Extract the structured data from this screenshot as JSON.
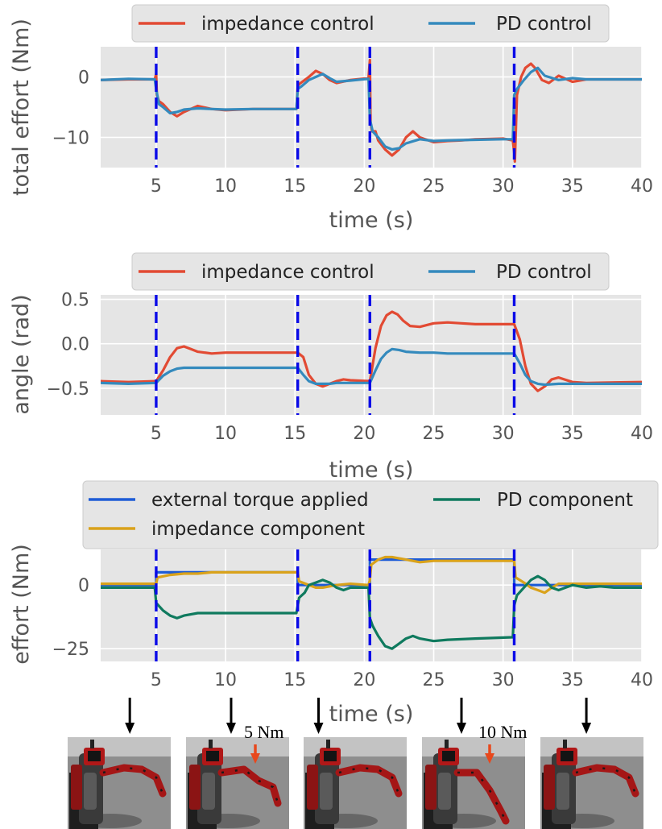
{
  "chart_data": [
    {
      "type": "line",
      "xlabel": "time (s)",
      "ylabel": "total effort (Nm)",
      "xlim": [
        1,
        40
      ],
      "ylim": [
        -15,
        5
      ],
      "xticks": [
        "5",
        "10",
        "15",
        "20",
        "25",
        "30",
        "35",
        "40"
      ],
      "yticks": [
        "0",
        "−10"
      ],
      "ytick_values": [
        0,
        -10
      ],
      "vlines": [
        5,
        15.2,
        20.4,
        30.8
      ],
      "legend": [
        "impedance control",
        "PD control"
      ],
      "series": [
        {
          "name": "impedance control",
          "color": "#e24a33",
          "x": [
            1,
            3,
            4.9,
            5.0,
            5.05,
            5.2,
            5.5,
            6,
            6.5,
            7,
            8,
            9,
            10,
            12,
            14,
            15.1,
            15.2,
            15.3,
            16,
            16.5,
            17,
            17.5,
            18,
            19,
            20.3,
            20.4,
            20.45,
            20.55,
            20.8,
            21,
            21.5,
            22,
            22.5,
            23,
            23.5,
            24,
            25,
            26,
            27,
            28,
            30,
            30.7,
            30.8,
            30.85,
            31,
            31.3,
            31.6,
            32,
            32.3,
            32.8,
            33.3,
            34,
            35,
            36,
            38,
            40
          ],
          "y": [
            -0.5,
            -0.4,
            -0.4,
            0.5,
            -3,
            -4,
            -4.5,
            -5.8,
            -6.5,
            -5.8,
            -4.8,
            -5.3,
            -5.5,
            -5.3,
            -5.3,
            -5.3,
            -1.5,
            -1.2,
            0,
            1,
            0.5,
            -0.5,
            -1,
            -0.5,
            -0.2,
            2.8,
            -7.5,
            -9,
            -9,
            -10.5,
            -12,
            -13,
            -12,
            -10,
            -9,
            -10,
            -10.8,
            -10.6,
            -10.5,
            -10.3,
            -10.2,
            -10.5,
            -12.5,
            -14,
            -3,
            0,
            1.5,
            2.2,
            1.5,
            -0.5,
            -1,
            0.2,
            -0.8,
            -0.4,
            -0.4,
            -0.4
          ]
        },
        {
          "name": "PD control",
          "color": "#348abd",
          "x": [
            1,
            3,
            4.9,
            5.0,
            5.2,
            5.5,
            6,
            6.5,
            7,
            8,
            9,
            10,
            12,
            14,
            15.1,
            15.2,
            15.5,
            16,
            16.5,
            17,
            17.5,
            18,
            19,
            20.3,
            20.4,
            20.6,
            21,
            21.5,
            22,
            22.5,
            23,
            24,
            25,
            26,
            28,
            30,
            30.7,
            30.8,
            31,
            31.5,
            32,
            32.5,
            33,
            34,
            35,
            36,
            38,
            40
          ],
          "y": [
            -0.5,
            -0.3,
            -0.4,
            -2,
            -4.5,
            -5,
            -6,
            -5.8,
            -5.4,
            -5.2,
            -5.3,
            -5.4,
            -5.3,
            -5.3,
            -5.3,
            -2,
            -1.5,
            -0.5,
            0,
            0.5,
            -0.2,
            -0.8,
            -0.6,
            -0.3,
            -7,
            -9,
            -10,
            -11.5,
            -12,
            -11.8,
            -11,
            -10.3,
            -10.6,
            -10.5,
            -10.4,
            -10.3,
            -10.3,
            -3,
            -2,
            -0.5,
            0.8,
            1.5,
            0.2,
            -0.5,
            -0.2,
            -0.4,
            -0.4,
            -0.4
          ]
        }
      ]
    },
    {
      "type": "line",
      "xlabel": "time (s)",
      "ylabel": "angle (rad)",
      "xlim": [
        1,
        40
      ],
      "ylim": [
        -0.8,
        0.55
      ],
      "xticks": [
        "5",
        "10",
        "15",
        "20",
        "25",
        "30",
        "35",
        "40"
      ],
      "yticks": [
        "0.5",
        "0.0",
        "−0.5"
      ],
      "ytick_values": [
        0.5,
        0,
        -0.5
      ],
      "vlines": [
        5,
        15.2,
        20.4,
        30.8
      ],
      "legend": [
        "impedance control",
        "PD control"
      ],
      "series": [
        {
          "name": "impedance control",
          "color": "#e24a33",
          "x": [
            1,
            3,
            5,
            5.5,
            6,
            6.5,
            7,
            7.5,
            8,
            9,
            10,
            12,
            14,
            15.2,
            15.6,
            16,
            16.5,
            17,
            17.5,
            18,
            18.5,
            19,
            20.4,
            20.8,
            21.2,
            21.6,
            22,
            22.4,
            22.8,
            23.3,
            24,
            25,
            26,
            27,
            28,
            30.8,
            31.2,
            31.6,
            32,
            32.5,
            33,
            33.5,
            34,
            35,
            36,
            40
          ],
          "y": [
            -0.42,
            -0.43,
            -0.42,
            -0.3,
            -0.15,
            -0.05,
            -0.03,
            -0.06,
            -0.09,
            -0.11,
            -0.1,
            -0.1,
            -0.1,
            -0.1,
            -0.15,
            -0.35,
            -0.45,
            -0.48,
            -0.45,
            -0.42,
            -0.4,
            -0.41,
            -0.42,
            -0.05,
            0.2,
            0.32,
            0.36,
            0.33,
            0.26,
            0.2,
            0.19,
            0.23,
            0.24,
            0.23,
            0.22,
            0.22,
            0.05,
            -0.25,
            -0.45,
            -0.53,
            -0.48,
            -0.4,
            -0.38,
            -0.43,
            -0.44,
            -0.43
          ]
        },
        {
          "name": "PD control",
          "color": "#348abd",
          "x": [
            1,
            3,
            5,
            5.5,
            6,
            6.5,
            7,
            8,
            9,
            10,
            12,
            14,
            15.2,
            15.6,
            16,
            16.5,
            17,
            17.5,
            18,
            19,
            20.4,
            20.8,
            21.2,
            21.6,
            22,
            22.5,
            23,
            24,
            25,
            26,
            28,
            30.8,
            31.2,
            31.6,
            32,
            32.5,
            33,
            34,
            35,
            36,
            40
          ],
          "y": [
            -0.44,
            -0.45,
            -0.44,
            -0.36,
            -0.31,
            -0.28,
            -0.27,
            -0.27,
            -0.27,
            -0.27,
            -0.27,
            -0.27,
            -0.27,
            -0.35,
            -0.42,
            -0.45,
            -0.45,
            -0.45,
            -0.44,
            -0.44,
            -0.44,
            -0.3,
            -0.17,
            -0.1,
            -0.06,
            -0.07,
            -0.09,
            -0.1,
            -0.1,
            -0.11,
            -0.11,
            -0.11,
            -0.22,
            -0.35,
            -0.42,
            -0.45,
            -0.46,
            -0.45,
            -0.45,
            -0.45,
            -0.45
          ]
        }
      ]
    },
    {
      "type": "line",
      "xlabel": "time (s)",
      "ylabel": "effort (Nm)",
      "xlim": [
        1,
        40
      ],
      "ylim": [
        -30,
        14
      ],
      "xticks": [
        "5",
        "10",
        "15",
        "20",
        "25",
        "30",
        "35",
        "40"
      ],
      "yticks": [
        "0",
        "−25"
      ],
      "ytick_values": [
        0,
        -25
      ],
      "vlines": [
        5,
        15.2,
        20.4,
        30.8
      ],
      "legend": [
        "external torque applied",
        "impedance component",
        "PD component"
      ],
      "series": [
        {
          "name": "external torque applied",
          "color": "#1e5cd6",
          "x": [
            1,
            5,
            5,
            15.2,
            15.2,
            20.4,
            20.4,
            30.8,
            30.8,
            40
          ],
          "y": [
            0,
            0,
            5,
            5,
            0,
            0,
            10,
            10,
            0,
            0
          ]
        },
        {
          "name": "impedance component",
          "color": "#d9a21b",
          "x": [
            1,
            5,
            5.1,
            6,
            7,
            8,
            9,
            10,
            12,
            14,
            15.2,
            15.3,
            16,
            16.5,
            17,
            18,
            19,
            20.3,
            20.4,
            20.5,
            21,
            21.5,
            22,
            23,
            24,
            25,
            26,
            28,
            30.7,
            30.8,
            30.9,
            31.5,
            32,
            32.5,
            33,
            33.5,
            34,
            35,
            36,
            40
          ],
          "y": [
            0.5,
            0.5,
            3,
            4,
            4.5,
            4.5,
            5,
            5,
            5,
            5,
            5,
            1.5,
            0,
            -1,
            -1,
            0,
            0.5,
            0,
            2,
            8,
            10,
            11,
            11,
            10,
            9,
            9.5,
            9.5,
            9.5,
            9.5,
            9.5,
            3,
            1,
            -1,
            -2,
            -3,
            -1,
            0.5,
            0.5,
            0.5,
            0.5
          ]
        },
        {
          "name": "PD component",
          "color": "#0f7a5e",
          "x": [
            1,
            4.9,
            5,
            5.5,
            6,
            6.5,
            7,
            8,
            9,
            10,
            12,
            14,
            15.1,
            15.3,
            15.7,
            16,
            16.5,
            17,
            17.5,
            18,
            18.5,
            19,
            20.3,
            20.4,
            20.6,
            21,
            21.5,
            22,
            22.5,
            23,
            23.5,
            24,
            25,
            26,
            28,
            30.7,
            30.8,
            31,
            31.5,
            32,
            32.5,
            33,
            33.5,
            34,
            34.5,
            35,
            36,
            37,
            38,
            40
          ],
          "y": [
            -1,
            -1,
            -7,
            -10,
            -12,
            -13,
            -12,
            -11,
            -11,
            -11,
            -11,
            -11,
            -11,
            -5,
            -3,
            0,
            1,
            2,
            1,
            -1,
            -2,
            -1,
            -1,
            -13,
            -16,
            -20,
            -24,
            -25,
            -23,
            -21,
            -20,
            -21,
            -22,
            -21.5,
            -21,
            -20.5,
            -8,
            -4,
            -1,
            2,
            3.5,
            2,
            -1,
            -2,
            -1,
            0,
            -1,
            -0.5,
            -1,
            -1
          ]
        }
      ]
    }
  ],
  "snapshots": [
    {
      "annotation": "",
      "x_time": 3.1
    },
    {
      "annotation": "5 Nm",
      "x_time": 10.4
    },
    {
      "annotation": "",
      "x_time": 16.7
    },
    {
      "annotation": "10 Nm",
      "x_time": 27.0
    },
    {
      "annotation": "",
      "x_time": 36.0
    }
  ],
  "colors": {
    "plot_bg": "#e5e5e5",
    "grid": "#ffffff",
    "vline": "#0a0ae8",
    "arrow": "#000000",
    "force_arrow": "#e8481c",
    "legend_bg": "#e5e5e5"
  }
}
